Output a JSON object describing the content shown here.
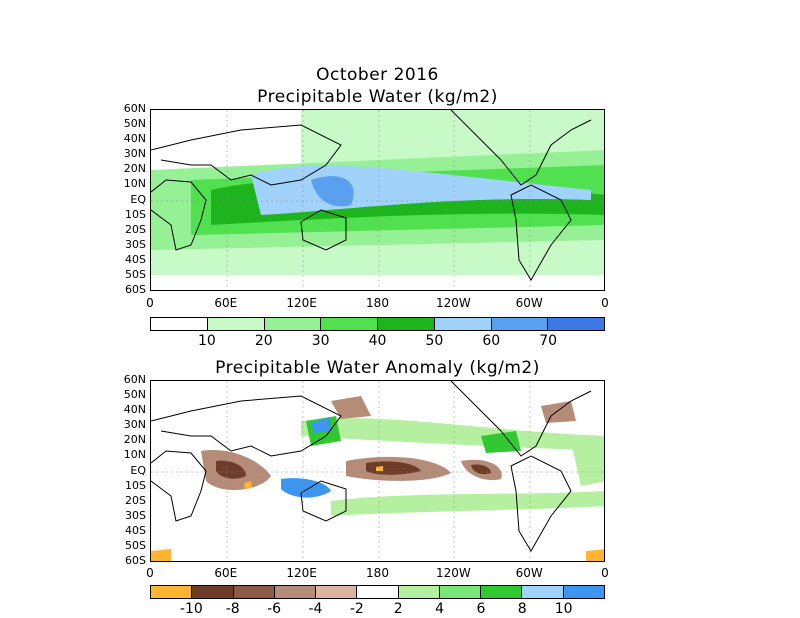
{
  "panel1": {
    "title_line1": "October 2016",
    "title_line2": "Precipitable Water (kg/m2)",
    "lat_labels": [
      "60N",
      "50N",
      "40N",
      "30N",
      "20N",
      "10N",
      "EQ",
      "10S",
      "20S",
      "30S",
      "40S",
      "50S",
      "60S"
    ],
    "lon_labels": [
      "0",
      "60E",
      "120E",
      "180",
      "120W",
      "60W",
      "0"
    ],
    "colorbar": {
      "colors": [
        "#ffffff",
        "#c8fac8",
        "#96f096",
        "#50e050",
        "#1eb41e",
        "#a0d2fa",
        "#5aa0f0",
        "#3c78e6"
      ],
      "labels": [
        "10",
        "20",
        "30",
        "40",
        "50",
        "60",
        "70"
      ]
    }
  },
  "panel2": {
    "title": "Precipitable Water Anomaly (kg/m2)",
    "lat_labels": [
      "60N",
      "50N",
      "40N",
      "30N",
      "20N",
      "10N",
      "EQ",
      "10S",
      "20S",
      "30S",
      "40S",
      "50S",
      "60S"
    ],
    "lon_labels": [
      "0",
      "60E",
      "120E",
      "180",
      "120W",
      "60W",
      "0"
    ],
    "colorbar": {
      "colors": [
        "#ffb432",
        "#6e3c28",
        "#8c5a46",
        "#b48c78",
        "#dcb4a0",
        "#ffffff",
        "#b4f0a0",
        "#78e678",
        "#32c832",
        "#a0d2fa",
        "#3c96f0"
      ],
      "labels": [
        "-10",
        "-8",
        "-6",
        "-4",
        "-2",
        "2",
        "4",
        "6",
        "8",
        "10"
      ]
    }
  }
}
